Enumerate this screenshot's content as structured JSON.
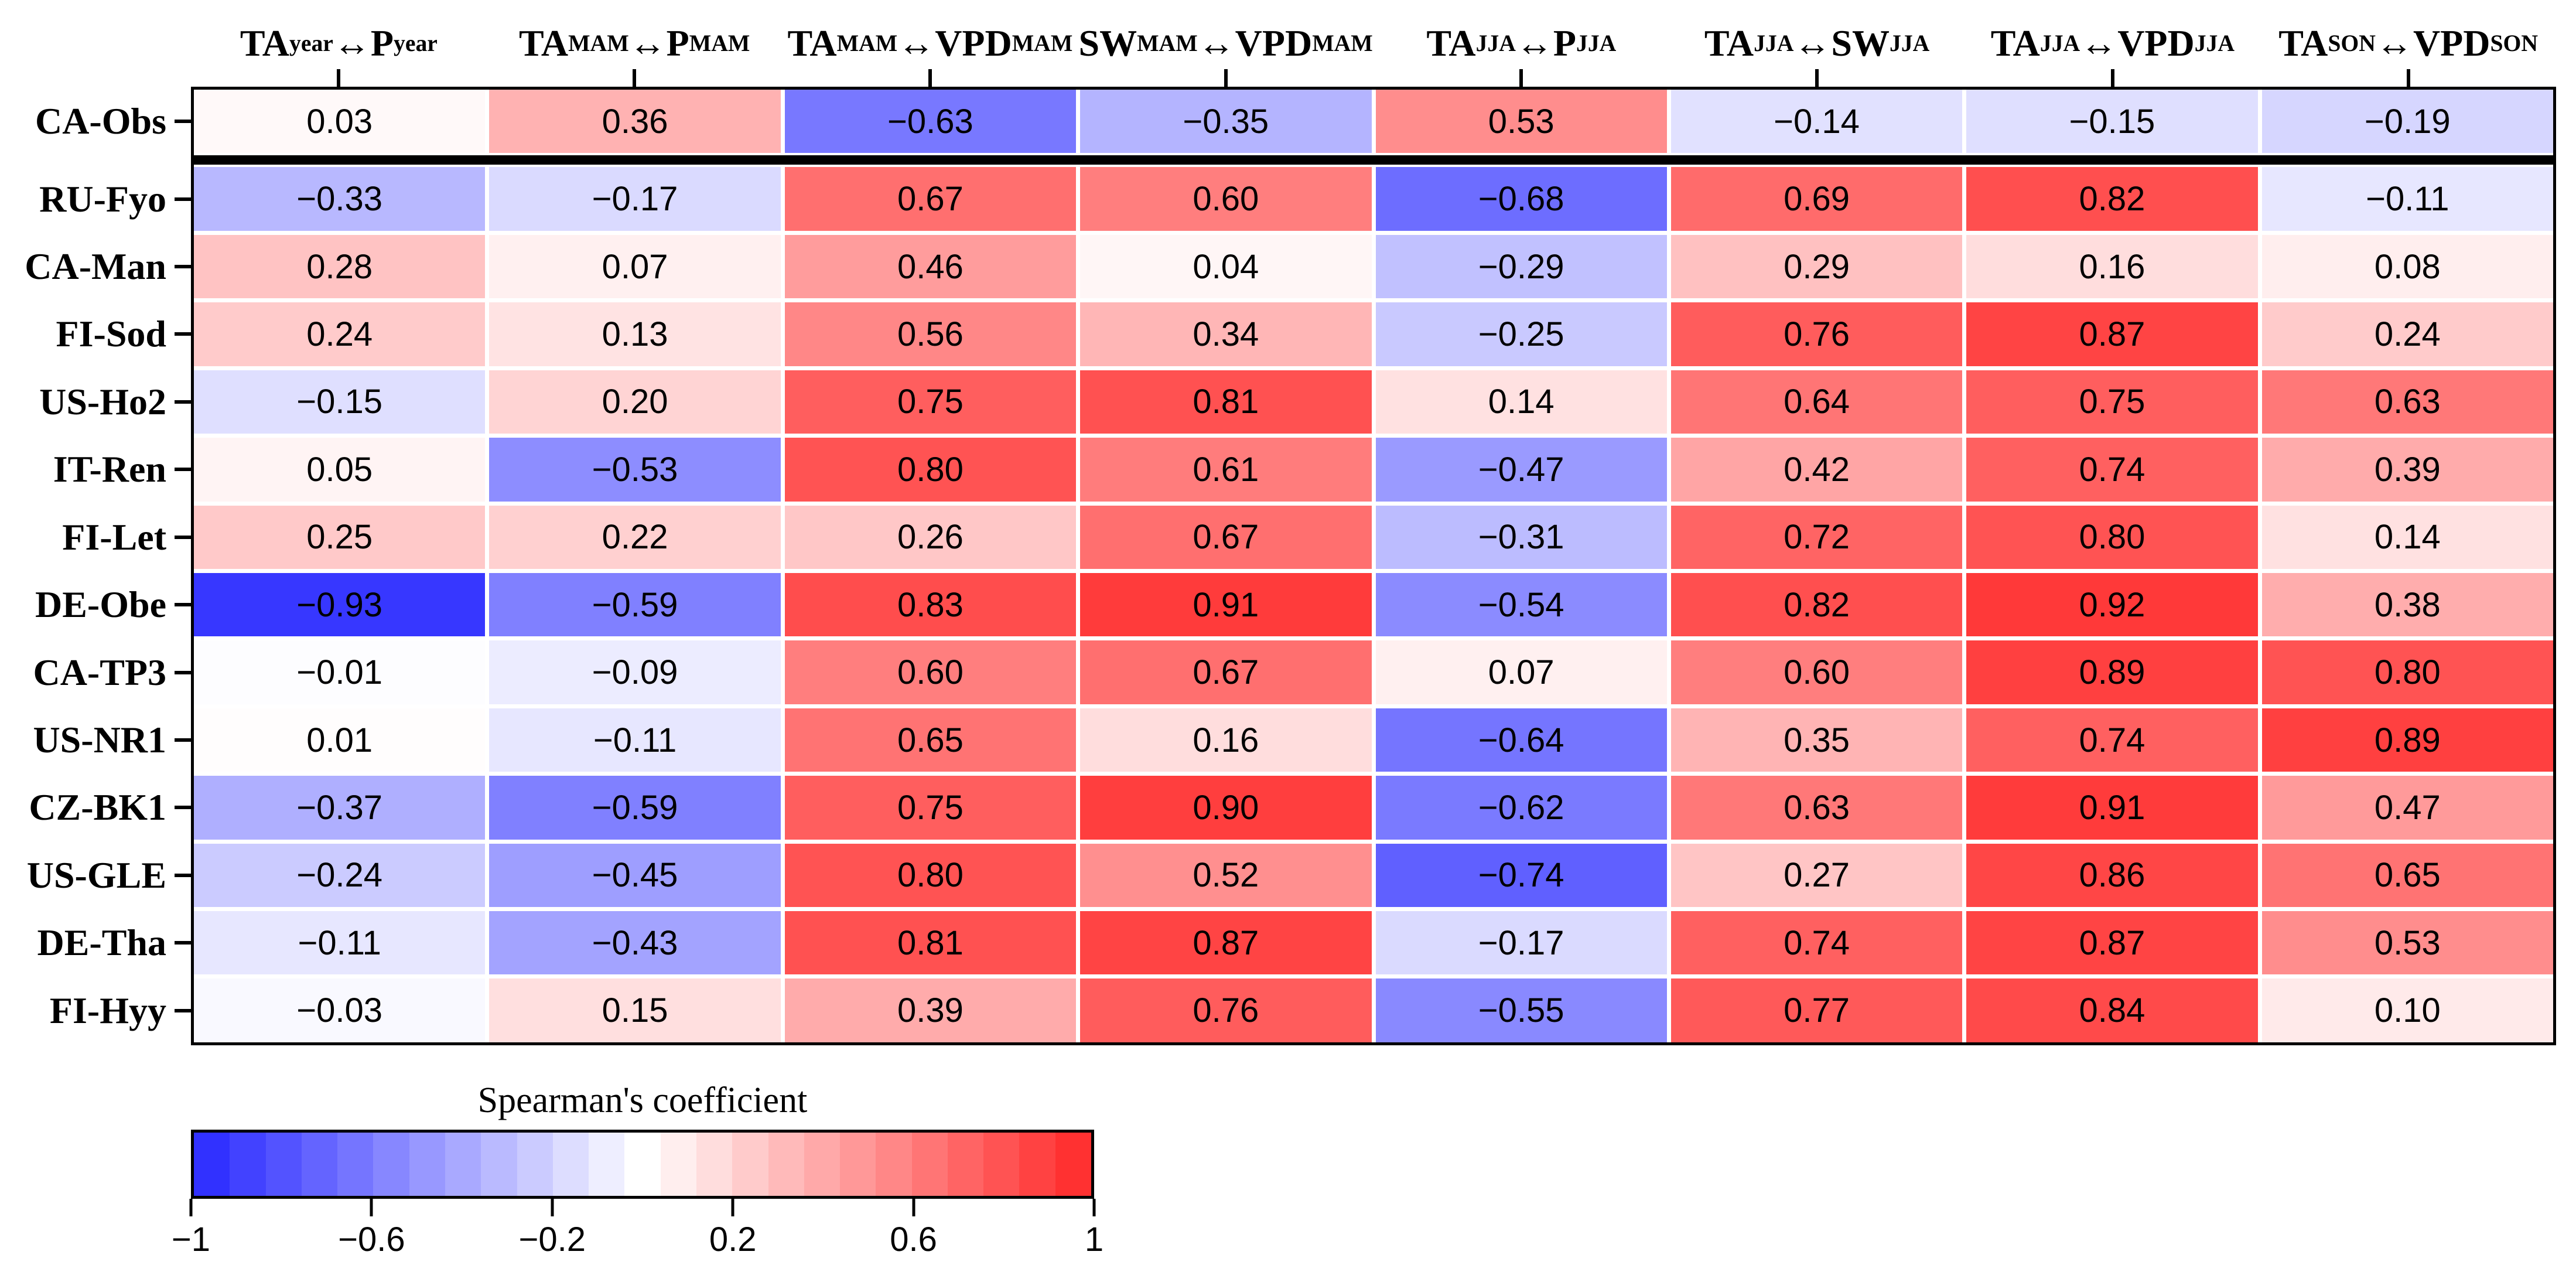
{
  "chart_data": {
    "type": "heatmap",
    "value_name": "Spearman's coefficient",
    "value_format_decimals": 2,
    "separator_after_row": 0,
    "columns": [
      {
        "label": "TA_year↔P_year",
        "segments": [
          {
            "t": "TA",
            "sub": "year"
          },
          {
            "t": "↔"
          },
          {
            "t": "P",
            "sub": "year"
          }
        ]
      },
      {
        "label": "TA_MAM↔P_MAM",
        "segments": [
          {
            "t": "TA",
            "sub": "MAM"
          },
          {
            "t": "↔"
          },
          {
            "t": "P",
            "sub": "MAM"
          }
        ]
      },
      {
        "label": "TA_MAM↔VPD_MAM",
        "segments": [
          {
            "t": "TA",
            "sub": "MAM"
          },
          {
            "t": "↔"
          },
          {
            "t": "VPD",
            "sub": "MAM"
          }
        ]
      },
      {
        "label": "SW_MAM↔VPD_MAM",
        "segments": [
          {
            "t": "SW",
            "sub": "MAM"
          },
          {
            "t": "↔"
          },
          {
            "t": "VPD",
            "sub": "MAM"
          }
        ]
      },
      {
        "label": "TA_JJA↔P_JJA",
        "segments": [
          {
            "t": "TA",
            "sub": "JJA"
          },
          {
            "t": "↔"
          },
          {
            "t": "P",
            "sub": "JJA"
          }
        ]
      },
      {
        "label": "TA_JJA↔SW_JJA",
        "segments": [
          {
            "t": "TA",
            "sub": "JJA"
          },
          {
            "t": "↔"
          },
          {
            "t": "SW",
            "sub": "JJA"
          }
        ]
      },
      {
        "label": "TA_JJA↔VPD_JJA",
        "segments": [
          {
            "t": "TA",
            "sub": "JJA"
          },
          {
            "t": "↔"
          },
          {
            "t": "VPD",
            "sub": "JJA"
          }
        ]
      },
      {
        "label": "TA_SON↔VPD_SON",
        "segments": [
          {
            "t": "TA",
            "sub": "SON"
          },
          {
            "t": "↔"
          },
          {
            "t": "VPD",
            "sub": "SON"
          }
        ]
      }
    ],
    "rows": [
      {
        "site": "CA-Obs",
        "values": [
          0.03,
          0.36,
          -0.63,
          -0.35,
          0.53,
          -0.14,
          -0.15,
          -0.19
        ]
      },
      {
        "site": "RU-Fyo",
        "values": [
          -0.33,
          -0.17,
          0.67,
          0.6,
          -0.68,
          0.69,
          0.82,
          -0.11
        ]
      },
      {
        "site": "CA-Man",
        "values": [
          0.28,
          0.07,
          0.46,
          0.04,
          -0.29,
          0.29,
          0.16,
          0.08
        ]
      },
      {
        "site": "FI-Sod",
        "values": [
          0.24,
          0.13,
          0.56,
          0.34,
          -0.25,
          0.76,
          0.87,
          0.24
        ]
      },
      {
        "site": "US-Ho2",
        "values": [
          -0.15,
          0.2,
          0.75,
          0.81,
          0.14,
          0.64,
          0.75,
          0.63
        ]
      },
      {
        "site": "IT-Ren",
        "values": [
          0.05,
          -0.53,
          0.8,
          0.61,
          -0.47,
          0.42,
          0.74,
          0.39
        ]
      },
      {
        "site": "FI-Let",
        "values": [
          0.25,
          0.22,
          0.26,
          0.67,
          -0.31,
          0.72,
          0.8,
          0.14
        ]
      },
      {
        "site": "DE-Obe",
        "values": [
          -0.93,
          -0.59,
          0.83,
          0.91,
          -0.54,
          0.82,
          0.92,
          0.38
        ]
      },
      {
        "site": "CA-TP3",
        "values": [
          -0.01,
          -0.09,
          0.6,
          0.67,
          0.07,
          0.6,
          0.89,
          0.8
        ]
      },
      {
        "site": "US-NR1",
        "values": [
          0.01,
          -0.11,
          0.65,
          0.16,
          -0.64,
          0.35,
          0.74,
          0.89
        ]
      },
      {
        "site": "CZ-BK1",
        "values": [
          -0.37,
          -0.59,
          0.75,
          0.9,
          -0.62,
          0.63,
          0.91,
          0.47
        ]
      },
      {
        "site": "US-GLE",
        "values": [
          -0.24,
          -0.45,
          0.8,
          0.52,
          -0.74,
          0.27,
          0.86,
          0.65
        ]
      },
      {
        "site": "DE-Tha",
        "values": [
          -0.11,
          -0.43,
          0.81,
          0.87,
          -0.17,
          0.74,
          0.87,
          0.53
        ]
      },
      {
        "site": "FI-Hyy",
        "values": [
          -0.03,
          0.15,
          0.39,
          0.76,
          -0.55,
          0.77,
          0.84,
          0.1
        ]
      }
    ],
    "legend": {
      "title": "Spearman's coefficient",
      "range": [
        -1,
        1
      ],
      "bins": 25,
      "tick_values": [
        -1,
        -0.6,
        -0.2,
        0.2,
        0.6,
        1
      ],
      "tick_labels": [
        "−1",
        "−0.6",
        "−0.2",
        "0.2",
        "0.6",
        "1"
      ],
      "colors": {
        "negative_end": "#2828ff",
        "zero": "#ffffff",
        "positive_end": "#ff2828"
      },
      "position": "bottom-left",
      "grid": false
    }
  }
}
